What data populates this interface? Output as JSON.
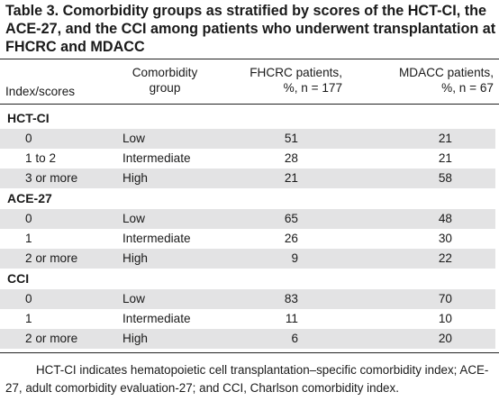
{
  "title": "Table 3. Comorbidity groups as stratified by scores of the HCT-CI, the ACE-27, and the CCI among patients who underwent transplantation at FHCRC and MDACC",
  "headers": {
    "index": "Index/scores",
    "group_line1": "Comorbidity",
    "group_line2": "group",
    "fhcrc_line1": "FHCRC patients,",
    "fhcrc_line2": "%, n = 177",
    "mdacc_line1": "MDACC patients,",
    "mdacc_line2": "%, n = 67"
  },
  "sections": [
    {
      "name": "HCT-CI",
      "rows": [
        {
          "score": "0",
          "group": "Low",
          "fhcrc": "51",
          "mdacc": "21"
        },
        {
          "score": "1 to 2",
          "group": "Intermediate",
          "fhcrc": "28",
          "mdacc": "21"
        },
        {
          "score": "3 or more",
          "group": "High",
          "fhcrc": "21",
          "mdacc": "58"
        }
      ]
    },
    {
      "name": "ACE-27",
      "rows": [
        {
          "score": "0",
          "group": "Low",
          "fhcrc": "65",
          "mdacc": "48"
        },
        {
          "score": "1",
          "group": "Intermediate",
          "fhcrc": "26",
          "mdacc": "30"
        },
        {
          "score": "2 or more",
          "group": "High",
          "fhcrc": "9",
          "mdacc": "22"
        }
      ]
    },
    {
      "name": "CCI",
      "rows": [
        {
          "score": "0",
          "group": "Low",
          "fhcrc": "83",
          "mdacc": "70"
        },
        {
          "score": "1",
          "group": "Intermediate",
          "fhcrc": "11",
          "mdacc": "10"
        },
        {
          "score": "2 or more",
          "group": "High",
          "fhcrc": "6",
          "mdacc": "20"
        }
      ]
    }
  ],
  "footnote": "HCT-CI indicates hematopoietic cell transplantation–specific comorbidity index; ACE-27, adult comorbidity evaluation-27; and CCI, Charlson comorbidity index.",
  "colors": {
    "shade": "#e3e3e4",
    "text": "#1a1a1a",
    "rule": "#222222"
  }
}
